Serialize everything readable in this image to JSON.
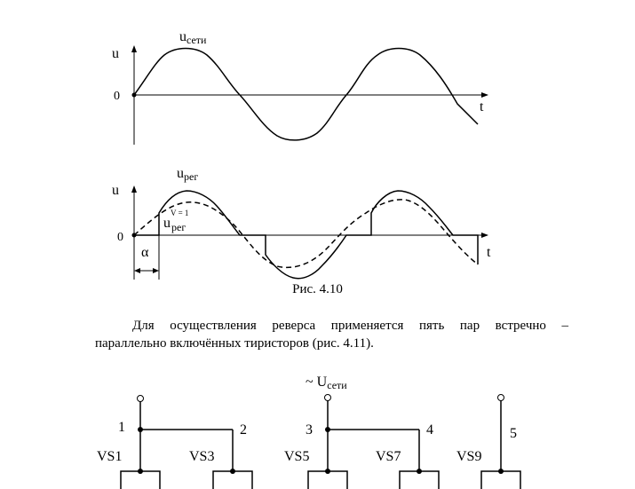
{
  "figure1": {
    "y_label": "u",
    "zero_label": "0",
    "t_label": "t",
    "curve_label_main": "u",
    "curve_label_sub": "сети"
  },
  "figure2": {
    "y_label": "u",
    "zero_label": "0",
    "t_label": "t",
    "curve_label_main": "u",
    "curve_label_sub": "рег",
    "dashed_label_main": "u",
    "dashed_label_sup": "V = 1",
    "dashed_label_sub": "рег",
    "alpha_label": "α"
  },
  "caption": "Рис. 4.10",
  "paragraph": {
    "line1": "Для осуществления реверса применяется пять пар встречно –",
    "line2": "параллельно включённых тиристоров (рис. 4.11)."
  },
  "schematic": {
    "supply_main": "~ U",
    "supply_sub": "сети",
    "node_labels": [
      "1",
      "2",
      "3",
      "4",
      "5"
    ],
    "thyristors": [
      "VS1",
      "VS3",
      "VS5",
      "VS7",
      "VS9"
    ]
  }
}
